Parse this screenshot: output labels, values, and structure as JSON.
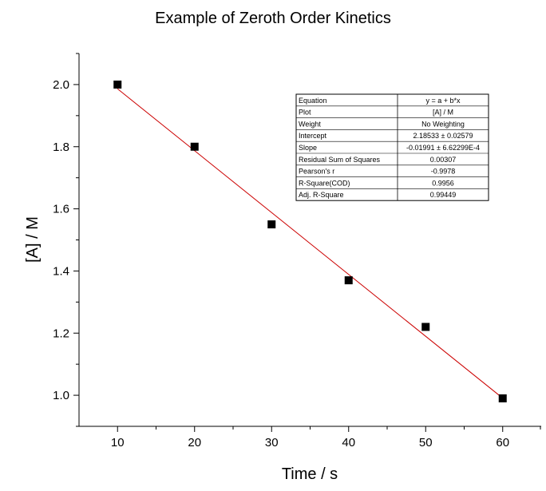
{
  "chart_data": {
    "type": "scatter",
    "title": "Example of Zeroth Order Kinetics",
    "xlabel": "Time / s",
    "ylabel": "[A] / M",
    "xlim": [
      5,
      65
    ],
    "ylim": [
      0.9,
      2.1
    ],
    "xticks": [
      "10",
      "20",
      "30",
      "40",
      "50",
      "60"
    ],
    "yticks": [
      "1.0",
      "1.2",
      "1.4",
      "1.6",
      "1.8",
      "2.0"
    ],
    "grid": false,
    "series": [
      {
        "points": [
          {
            "x": 10,
            "y": 2.0
          },
          {
            "x": 20,
            "y": 1.8
          },
          {
            "x": 30,
            "y": 1.55
          },
          {
            "x": 40,
            "y": 1.37
          },
          {
            "x": 50,
            "y": 1.22
          },
          {
            "x": 60,
            "y": 0.99
          }
        ],
        "marker": "square",
        "color": "#000000"
      }
    ],
    "fit": {
      "type": "linear",
      "intercept": 2.18533,
      "slope": -0.01991,
      "x_range": [
        10,
        60
      ],
      "color": "#cc0000"
    },
    "fit_table": {
      "placement": "top-right",
      "rows": [
        {
          "label": "Equation",
          "value": "y = a + b*x"
        },
        {
          "label": "Plot",
          "value": "[A] / M"
        },
        {
          "label": "Weight",
          "value": "No Weighting"
        },
        {
          "label": "Intercept",
          "value": "2.18533 ± 0.02579"
        },
        {
          "label": "Slope",
          "value": "-0.01991 ± 6.62299E-4"
        },
        {
          "label": "Residual Sum of Squares",
          "value": "0.00307"
        },
        {
          "label": "Pearson's r",
          "value": "-0.9978"
        },
        {
          "label": "R-Square(COD)",
          "value": "0.9956"
        },
        {
          "label": "Adj. R-Square",
          "value": "0.99449"
        }
      ]
    }
  }
}
